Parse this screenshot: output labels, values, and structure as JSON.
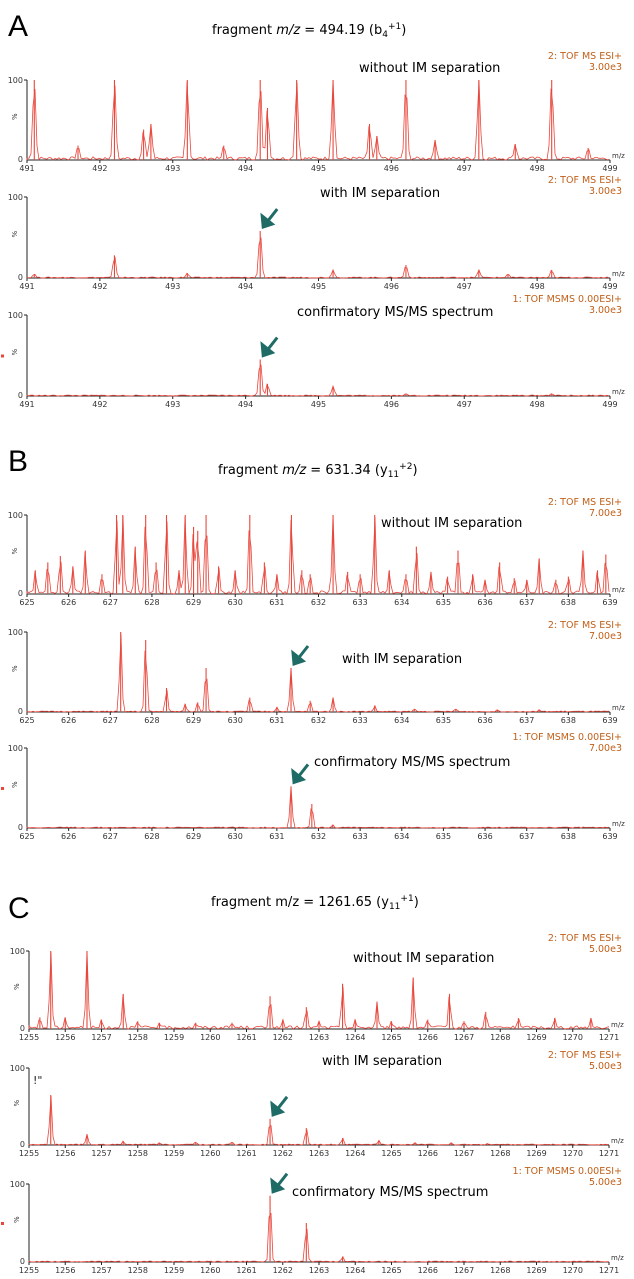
{
  "chart_data": [
    {
      "panel": "A",
      "title_parts": [
        "fragment ",
        "m/z",
        " = 494.19 (b",
        "4",
        "+1",
        ")"
      ],
      "type": "line",
      "xlim": [
        491,
        499
      ],
      "x_ticks": [
        "491",
        "492",
        "493",
        "494",
        "495",
        "496",
        "497",
        "498",
        "499"
      ],
      "ylabel": "%",
      "y_tick": "100",
      "y_zero": "0",
      "x_unit": "m/z",
      "subplots": [
        {
          "label": "without IM separation",
          "instrument": "2: TOF MS ESI+",
          "intensity": "3.00e3",
          "peaks": [
            [
              491.1,
              100
            ],
            [
              491.7,
              18
            ],
            [
              492.2,
              100
            ],
            [
              492.6,
              38
            ],
            [
              492.7,
              45
            ],
            [
              493.2,
              100
            ],
            [
              493.7,
              18
            ],
            [
              494.2,
              100
            ],
            [
              494.3,
              65
            ],
            [
              494.7,
              100
            ],
            [
              495.2,
              100
            ],
            [
              495.7,
              45
            ],
            [
              495.8,
              30
            ],
            [
              496.2,
              100
            ],
            [
              496.6,
              25
            ],
            [
              497.2,
              100
            ],
            [
              497.7,
              20
            ],
            [
              498.2,
              100
            ],
            [
              498.7,
              15
            ]
          ]
        },
        {
          "label": "with IM separation",
          "instrument": "2: TOF MS ESI+",
          "intensity": "3.00e3",
          "arrow_x": 494.2,
          "peaks": [
            [
              491.1,
              5
            ],
            [
              492.2,
              28
            ],
            [
              493.2,
              6
            ],
            [
              494.2,
              58
            ],
            [
              495.2,
              10
            ],
            [
              496.2,
              16
            ],
            [
              497.2,
              10
            ],
            [
              497.6,
              5
            ],
            [
              498.2,
              10
            ]
          ]
        },
        {
          "label": "confirmatory MS/MS spectrum",
          "instrument": "1: TOF MSMS 0.00ESI+",
          "intensity": "3.00e3",
          "arrow_x": 494.2,
          "peaks": [
            [
              494.2,
              45
            ],
            [
              494.3,
              15
            ],
            [
              495.2,
              12
            ],
            [
              496.2,
              3
            ],
            [
              498.2,
              3
            ]
          ]
        }
      ]
    },
    {
      "panel": "B",
      "title_parts": [
        "fragment ",
        "m/z",
        " = 631.34 (y",
        "11",
        "+2",
        ")"
      ],
      "type": "line",
      "xlim": [
        625,
        639
      ],
      "x_ticks": [
        "625",
        "626",
        "627",
        "628",
        "629",
        "630",
        "631",
        "632",
        "633",
        "634",
        "635",
        "636",
        "637",
        "638",
        "639"
      ],
      "ylabel": "%",
      "y_tick": "100",
      "y_zero": "0",
      "x_unit": "m/z",
      "subplots": [
        {
          "label": "without IM separation",
          "instrument": "2: TOF MS ESI+",
          "intensity": "7.00e3",
          "peaks": [
            [
              625.2,
              30
            ],
            [
              625.5,
              40
            ],
            [
              625.8,
              48
            ],
            [
              626.1,
              35
            ],
            [
              626.4,
              55
            ],
            [
              626.8,
              25
            ],
            [
              627.15,
              100
            ],
            [
              627.3,
              100
            ],
            [
              627.6,
              60
            ],
            [
              627.85,
              100
            ],
            [
              628.1,
              40
            ],
            [
              628.35,
              100
            ],
            [
              628.65,
              30
            ],
            [
              628.8,
              100
            ],
            [
              629.0,
              85
            ],
            [
              629.1,
              80
            ],
            [
              629.3,
              100
            ],
            [
              629.6,
              35
            ],
            [
              630.0,
              30
            ],
            [
              630.35,
              100
            ],
            [
              630.7,
              40
            ],
            [
              631.0,
              25
            ],
            [
              631.35,
              100
            ],
            [
              631.6,
              30
            ],
            [
              631.8,
              25
            ],
            [
              632.35,
              100
            ],
            [
              632.7,
              28
            ],
            [
              633.0,
              25
            ],
            [
              633.35,
              100
            ],
            [
              633.7,
              30
            ],
            [
              634.1,
              25
            ],
            [
              634.35,
              60
            ],
            [
              634.7,
              28
            ],
            [
              635.1,
              22
            ],
            [
              635.35,
              55
            ],
            [
              635.7,
              25
            ],
            [
              636.0,
              18
            ],
            [
              636.35,
              40
            ],
            [
              636.7,
              20
            ],
            [
              637.0,
              18
            ],
            [
              637.3,
              45
            ],
            [
              637.7,
              18
            ],
            [
              638.0,
              22
            ],
            [
              638.35,
              55
            ],
            [
              638.7,
              30
            ],
            [
              638.9,
              50
            ]
          ]
        },
        {
          "label": "with IM separation",
          "instrument": "2: TOF MS ESI+",
          "intensity": "7.00e3",
          "arrow_x": 631.34,
          "peaks": [
            [
              627.25,
              100
            ],
            [
              627.85,
              90
            ],
            [
              628.35,
              30
            ],
            [
              628.8,
              10
            ],
            [
              629.1,
              12
            ],
            [
              629.3,
              55
            ],
            [
              630.35,
              18
            ],
            [
              631.0,
              6
            ],
            [
              631.34,
              55
            ],
            [
              631.8,
              14
            ],
            [
              632.35,
              18
            ],
            [
              633.35,
              8
            ],
            [
              634.3,
              4
            ],
            [
              635.3,
              4
            ],
            [
              636.3,
              3
            ],
            [
              637.3,
              3
            ]
          ]
        },
        {
          "label": "confirmatory MS/MS spectrum",
          "instrument": "1: TOF MSMS 0.00ESI+",
          "intensity": "7.00e3",
          "arrow_x": 631.34,
          "peaks": [
            [
              631.34,
              52
            ],
            [
              631.84,
              30
            ],
            [
              632.34,
              4
            ]
          ]
        }
      ]
    },
    {
      "panel": "C",
      "title_parts": [
        "fragment m/z = 1261.65 (y",
        "11",
        "+1",
        ")"
      ],
      "type": "line",
      "xlim": [
        1255,
        1271
      ],
      "x_ticks": [
        "1255",
        "1256",
        "1257",
        "1258",
        "1259",
        "1260",
        "1261",
        "1262",
        "1263",
        "1264",
        "1265",
        "1266",
        "1267",
        "1268",
        "1269",
        "1270",
        "1271"
      ],
      "ylabel": "%",
      "y_tick": "100",
      "y_zero": "0",
      "x_unit": "m/z",
      "subplots": [
        {
          "label": "without IM separation",
          "instrument": "2: TOF MS ESI+",
          "intensity": "5.00e3",
          "peaks": [
            [
              1255.3,
              15
            ],
            [
              1255.6,
              100
            ],
            [
              1256.0,
              15
            ],
            [
              1256.6,
              100
            ],
            [
              1257.0,
              12
            ],
            [
              1257.6,
              45
            ],
            [
              1258.0,
              10
            ],
            [
              1258.6,
              8
            ],
            [
              1259.6,
              8
            ],
            [
              1260.6,
              8
            ],
            [
              1261.65,
              42
            ],
            [
              1262.0,
              12
            ],
            [
              1262.65,
              28
            ],
            [
              1263.0,
              10
            ],
            [
              1263.65,
              58
            ],
            [
              1264.0,
              12
            ],
            [
              1264.6,
              35
            ],
            [
              1265.0,
              10
            ],
            [
              1265.6,
              66
            ],
            [
              1266.0,
              12
            ],
            [
              1266.6,
              45
            ],
            [
              1267.0,
              10
            ],
            [
              1267.6,
              22
            ],
            [
              1268.5,
              14
            ],
            [
              1269.5,
              14
            ],
            [
              1270.5,
              14
            ]
          ]
        },
        {
          "label": "with IM separation",
          "instrument": "2: TOF MS ESI+",
          "intensity": "5.00e3",
          "arrow_x": 1261.65,
          "odd_label": "!\"",
          "peaks": [
            [
              1255.6,
              65
            ],
            [
              1256.6,
              14
            ],
            [
              1257.6,
              5
            ],
            [
              1258.6,
              3
            ],
            [
              1259.6,
              4
            ],
            [
              1260.6,
              4
            ],
            [
              1261.65,
              34
            ],
            [
              1262.65,
              22
            ],
            [
              1263.65,
              9
            ],
            [
              1264.65,
              6
            ],
            [
              1265.65,
              3
            ],
            [
              1266.65,
              3
            ],
            [
              1267.65,
              2
            ]
          ]
        },
        {
          "label": "confirmatory MS/MS spectrum",
          "instrument": "1: TOF MSMS 0.00ESI+",
          "intensity": "5.00e3",
          "arrow_x": 1261.65,
          "peaks": [
            [
              1261.65,
              85
            ],
            [
              1262.65,
              50
            ],
            [
              1263.65,
              7
            ]
          ]
        }
      ]
    }
  ]
}
